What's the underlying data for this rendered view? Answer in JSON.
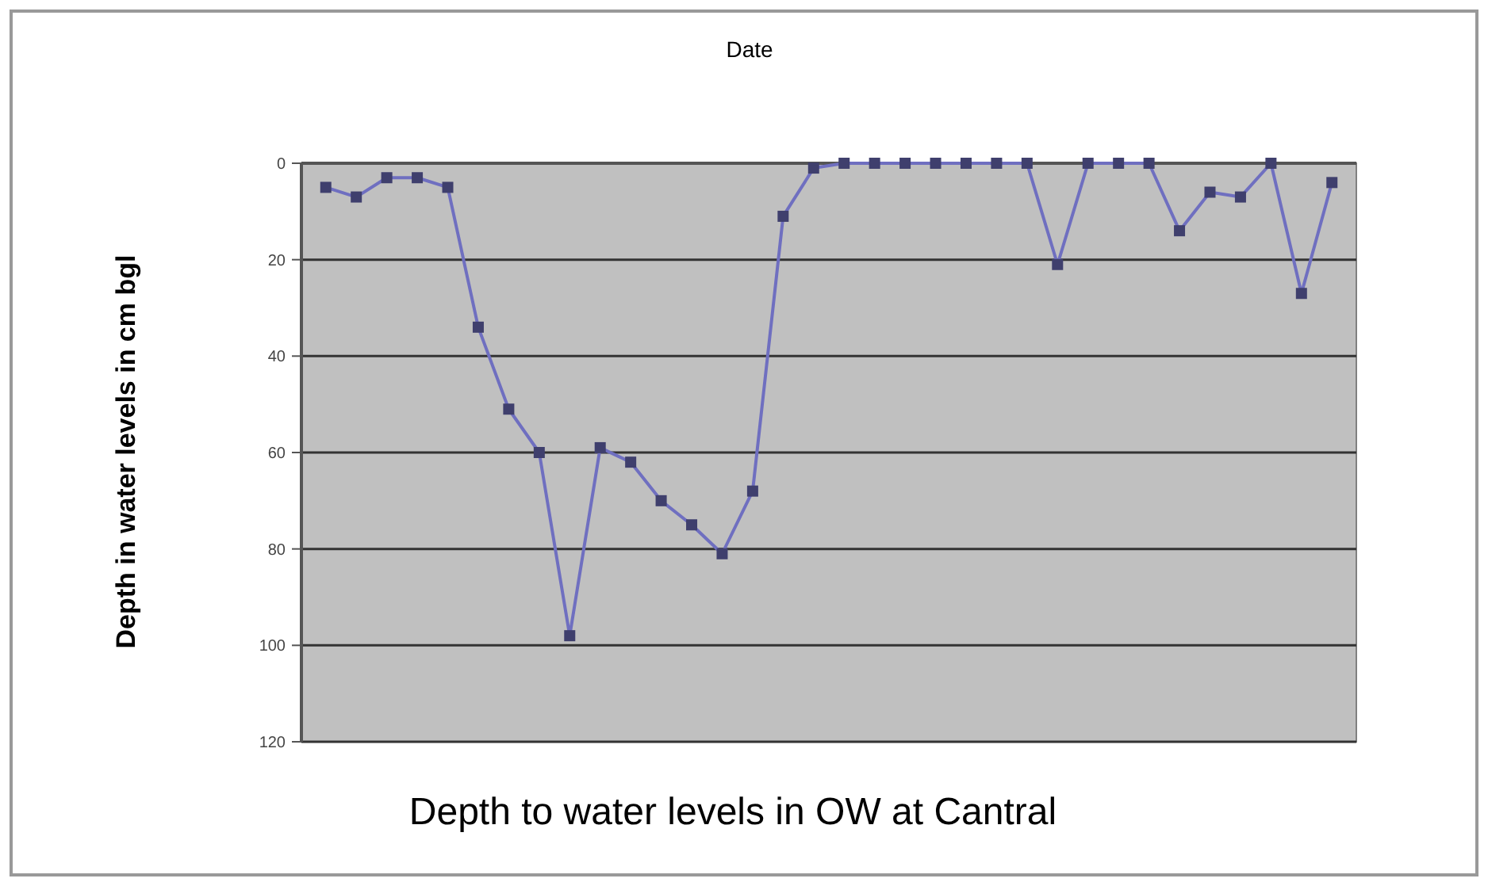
{
  "chart_data": {
    "type": "line",
    "title": "Depth to water levels in OW at Cantral",
    "xlabel": "Date",
    "ylabel": "Depth in water levels in cm bgl",
    "categories": [
      null,
      null,
      null,
      null,
      null,
      null,
      null,
      null,
      null,
      null,
      null,
      null,
      null,
      null,
      null,
      null,
      null,
      null,
      null,
      null,
      null,
      null,
      null,
      null,
      null,
      null,
      null,
      null,
      null,
      null,
      null,
      null,
      null,
      null
    ],
    "series": [
      {
        "color": "#6f6fc0",
        "values": [
          5,
          7,
          3,
          3,
          5,
          34,
          51,
          60,
          98,
          59,
          62,
          70,
          75,
          81,
          68,
          11,
          1,
          0,
          0,
          0,
          0,
          0,
          0,
          0,
          21,
          0,
          0,
          0,
          14,
          6,
          7,
          0,
          27,
          4
        ]
      }
    ],
    "ylim": [
      120,
      0
    ],
    "yticks": [
      0,
      20,
      40,
      60,
      80,
      100,
      120
    ],
    "tick_labels": "y",
    "grid": "y",
    "marker": "square",
    "line_style": "solid"
  }
}
